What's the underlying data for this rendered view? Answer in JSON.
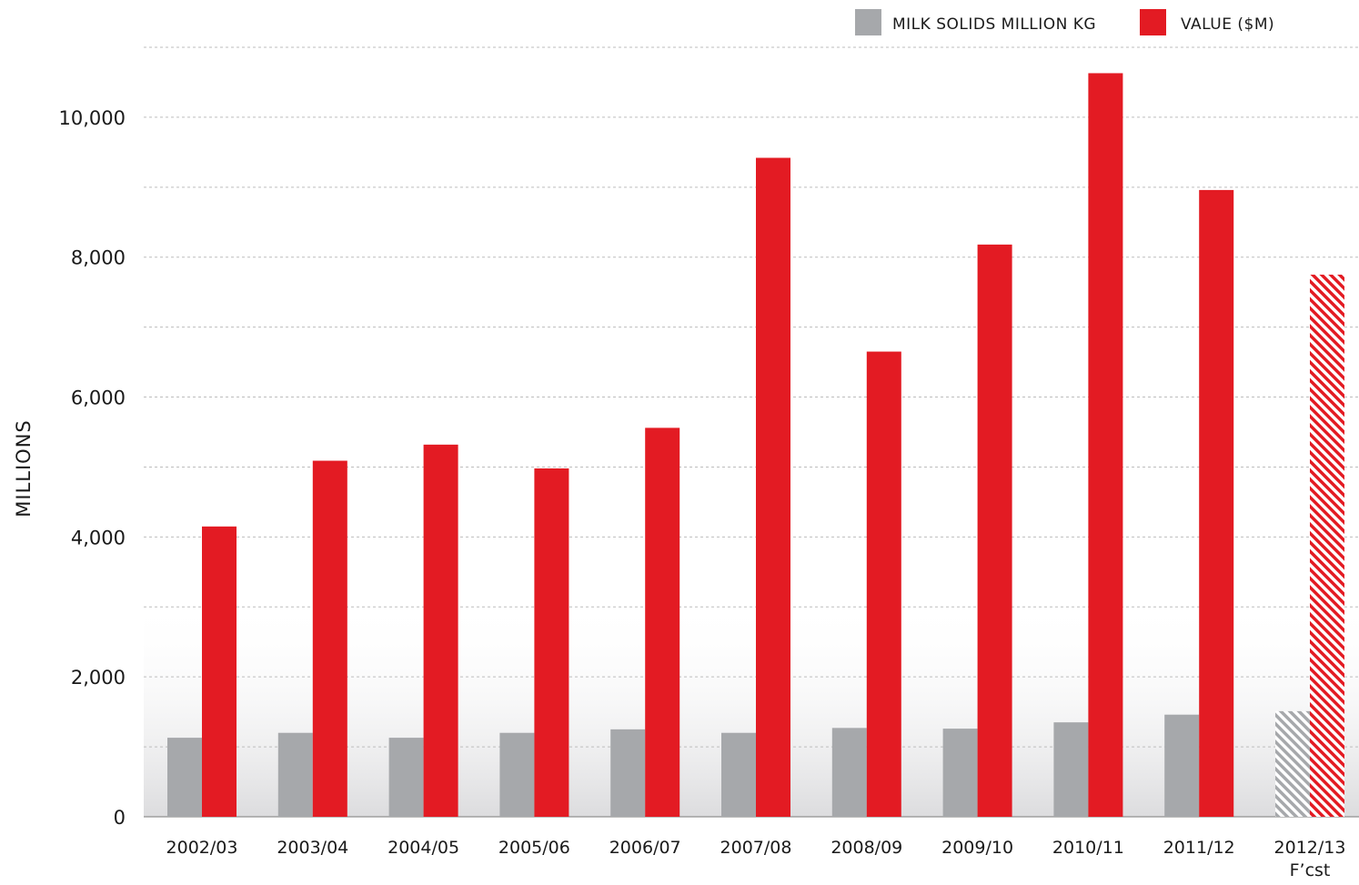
{
  "legend": {
    "milk_label": "MILK SOLIDS MILLION KG",
    "value_label": "VALUE ($M)"
  },
  "colors": {
    "milk": "#a6a8ab",
    "value": "#e31b23",
    "grid": "#bdbdbd",
    "background_gradient": "#dcdcde"
  },
  "chart_data": {
    "type": "bar",
    "title": "",
    "xlabel": "",
    "ylabel": "MILLIONS",
    "ylim": [
      0,
      11000
    ],
    "yticks": [
      0,
      2000,
      4000,
      6000,
      8000,
      10000
    ],
    "ytick_labels": [
      "0",
      "2,000",
      "4,000",
      "6,000",
      "8,000",
      "10,000"
    ],
    "grid": true,
    "legend_position": "top-right",
    "categories": [
      [
        "2002/03"
      ],
      [
        "2003/04"
      ],
      [
        "2004/05"
      ],
      [
        "2005/06"
      ],
      [
        "2006/07"
      ],
      [
        "2007/08"
      ],
      [
        "2008/09"
      ],
      [
        "2009/10"
      ],
      [
        "2010/11"
      ],
      [
        "2011/12"
      ],
      [
        "2012/13",
        "F’cst"
      ]
    ],
    "series": [
      {
        "name": "MILK SOLIDS MILLION KG",
        "values": [
          1130,
          1200,
          1130,
          1200,
          1250,
          1200,
          1270,
          1260,
          1350,
          1460,
          1510
        ]
      },
      {
        "name": "VALUE ($M)",
        "values": [
          4150,
          5090,
          5320,
          4980,
          5560,
          9420,
          6650,
          8180,
          10630,
          8960,
          7750
        ]
      }
    ],
    "forecast_index": 10
  }
}
